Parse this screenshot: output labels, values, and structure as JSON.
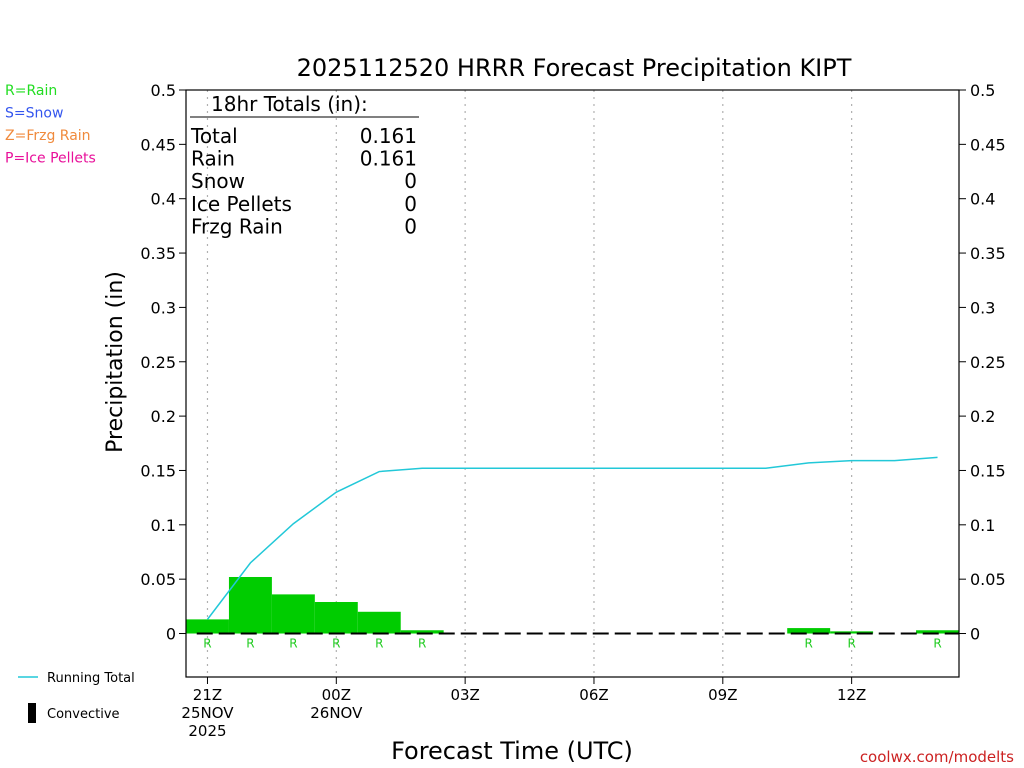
{
  "chart_data": {
    "type": "bar",
    "title": "2025112520 HRRR Forecast Precipitation KIPT",
    "ylabel": "Precipitation (in)",
    "xlabel": "Forecast Time (UTC)",
    "ylim": [
      -0.04,
      0.5
    ],
    "xlim": [
      -0.5,
      17.5
    ],
    "y_ticks": [
      "0",
      "0.05",
      "0.1",
      "0.15",
      "0.2",
      "0.25",
      "0.3",
      "0.35",
      "0.4",
      "0.45",
      "0.5"
    ],
    "y_tick_values": [
      0,
      0.05,
      0.1,
      0.15,
      0.2,
      0.25,
      0.3,
      0.35,
      0.4,
      0.45,
      0.5
    ],
    "x_ticks": [
      {
        "hour": 0,
        "lines": [
          "21Z",
          "25NOV",
          "2025"
        ]
      },
      {
        "hour": 3,
        "lines": [
          "00Z",
          "26NOV"
        ]
      },
      {
        "hour": 6,
        "lines": [
          "03Z"
        ]
      },
      {
        "hour": 9,
        "lines": [
          "06Z"
        ]
      },
      {
        "hour": 12,
        "lines": [
          "09Z"
        ]
      },
      {
        "hour": 15,
        "lines": [
          "12Z"
        ]
      }
    ],
    "bar_hours": [
      0,
      1,
      2,
      3,
      4,
      5,
      6,
      7,
      8,
      9,
      10,
      11,
      12,
      13,
      14,
      15,
      16,
      17
    ],
    "series": [
      {
        "type": "bar",
        "color": "#00cc00",
        "values": [
          0.013,
          0.052,
          0.036,
          0.029,
          0.02,
          0.003,
          0,
          0,
          0,
          0,
          0,
          0,
          0,
          0,
          0.005,
          0.002,
          0,
          0.003
        ]
      },
      {
        "name": "Running Total",
        "type": "line",
        "color": "#22c8d8",
        "x": [
          0,
          1,
          2,
          3,
          4,
          5,
          6,
          7,
          8,
          9,
          10,
          11,
          12,
          13,
          14,
          15,
          16,
          17
        ],
        "values": [
          0.013,
          0.065,
          0.101,
          0.13,
          0.149,
          0.152,
          0.152,
          0.152,
          0.152,
          0.152,
          0.152,
          0.152,
          0.152,
          0.152,
          0.157,
          0.159,
          0.159,
          0.162
        ]
      }
    ],
    "ptype_labels": [
      {
        "hour": 0,
        "label": "R"
      },
      {
        "hour": 1,
        "label": "R"
      },
      {
        "hour": 2,
        "label": "R"
      },
      {
        "hour": 3,
        "label": "R"
      },
      {
        "hour": 4,
        "label": "R"
      },
      {
        "hour": 5,
        "label": "R"
      },
      {
        "hour": 14,
        "label": "R"
      },
      {
        "hour": 15,
        "label": "R"
      },
      {
        "hour": 17,
        "label": "R"
      }
    ],
    "grid": "vertical dotted at tick hours",
    "totals_box": {
      "heading": "18hr Totals (in):",
      "rows": [
        {
          "label": "Total",
          "value": "0.161"
        },
        {
          "label": "Rain",
          "value": "0.161"
        },
        {
          "label": "Snow",
          "value": "0"
        },
        {
          "label": "Ice Pellets",
          "value": "0"
        },
        {
          "label": "Frzg Rain",
          "value": "0"
        }
      ]
    }
  },
  "ptype_legend": [
    {
      "text": "R=Rain",
      "color": "#22dd22"
    },
    {
      "text": "S=Snow",
      "color": "#3355ee"
    },
    {
      "text": "Z=Frzg Rain",
      "color": "#f08a3c"
    },
    {
      "text": "P=Ice Pellets",
      "color": "#e8109a"
    }
  ],
  "bottom_legend": {
    "running_total": "Running Total",
    "convective": "Convective"
  },
  "credit": "coolwx.com/modelts"
}
